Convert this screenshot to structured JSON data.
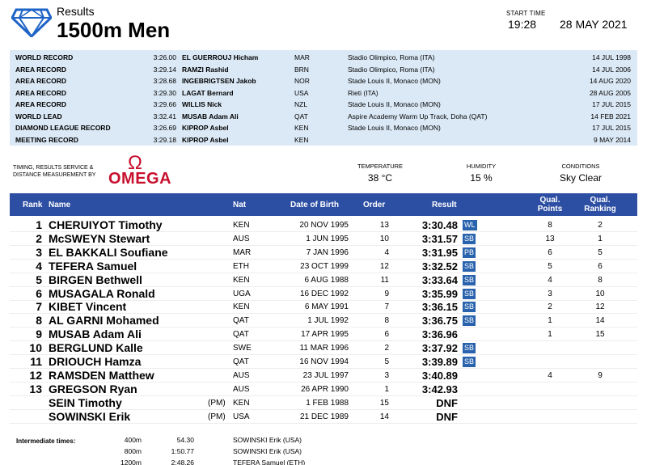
{
  "header": {
    "subtitle": "Results",
    "title": "1500m Men",
    "start_time_label": "START TIME",
    "start_time": "19:28",
    "date": "28 MAY 2021"
  },
  "records": [
    {
      "type": "WORLD RECORD",
      "mark": "3:26.00",
      "name": "EL GUERROUJ Hicham",
      "nat": "MAR",
      "venue": "Stadio Olimpico, Roma (ITA)",
      "date": "14 JUL 1998"
    },
    {
      "type": "AREA RECORD",
      "mark": "3:29.14",
      "name": "RAMZI Rashid",
      "nat": "BRN",
      "venue": "Stadio Olimpico, Roma (ITA)",
      "date": "14 JUL 2006"
    },
    {
      "type": "AREA RECORD",
      "mark": "3:28.68",
      "name": "INGEBRIGTSEN Jakob",
      "nat": "NOR",
      "venue": "Stade Louis II, Monaco (MON)",
      "date": "14 AUG 2020"
    },
    {
      "type": "AREA RECORD",
      "mark": "3:29.30",
      "name": "LAGAT Bernard",
      "nat": "USA",
      "venue": "Rieti (ITA)",
      "date": "28 AUG 2005"
    },
    {
      "type": "AREA RECORD",
      "mark": "3:29.66",
      "name": "WILLIS Nick",
      "nat": "NZL",
      "venue": "Stade Louis II, Monaco (MON)",
      "date": "17 JUL 2015"
    },
    {
      "type": "WORLD LEAD",
      "mark": "3:32.41",
      "name": "MUSAB Adam Ali",
      "nat": "QAT",
      "venue": "Aspire Academy Warm Up Track, Doha (QAT)",
      "date": "14 FEB 2021"
    },
    {
      "type": "DIAMOND LEAGUE RECORD",
      "mark": "3:26.69",
      "name": "KIPROP Asbel",
      "nat": "KEN",
      "venue": "Stade Louis II, Monaco (MON)",
      "date": "17 JUL 2015"
    },
    {
      "type": "MEETING RECORD",
      "mark": "3:29.18",
      "name": "KIPROP Asbel",
      "nat": "KEN",
      "venue": "",
      "date": "9 MAY 2014"
    }
  ],
  "timing": {
    "label_line1": "TIMING, RESULTS SERVICE &",
    "label_line2": "DISTANCE MEASUREMENT BY",
    "brand_symbol": "Ω",
    "brand": "OMEGA"
  },
  "conditions": {
    "temperature_label": "TEMPERATURE",
    "temperature": "38 °C",
    "humidity_label": "HUMIDITY",
    "humidity": "15 %",
    "conditions_label": "CONDITIONS",
    "conditions": "Sky Clear"
  },
  "table": {
    "headers": {
      "rank": "Rank",
      "name": "Name",
      "nat": "Nat",
      "dob": "Date of Birth",
      "order": "Order",
      "result": "Result",
      "qual_points_1": "Qual.",
      "qual_points_2": "Points",
      "qual_ranking_1": "Qual.",
      "qual_ranking_2": "Ranking"
    },
    "rows": [
      {
        "rank": "1",
        "name": "CHERUIYOT Timothy",
        "pm": "",
        "nat": "KEN",
        "dob": "20 NOV 1995",
        "order": "13",
        "result": "3:30.48",
        "badge": "WL",
        "qual_points": "8",
        "qual_ranking": "2"
      },
      {
        "rank": "2",
        "name": "McSWEYN Stewart",
        "pm": "",
        "nat": "AUS",
        "dob": "1 JUN 1995",
        "order": "10",
        "result": "3:31.57",
        "badge": "SB",
        "qual_points": "13",
        "qual_ranking": "1"
      },
      {
        "rank": "3",
        "name": "EL BAKKALI Soufiane",
        "pm": "",
        "nat": "MAR",
        "dob": "7 JAN 1996",
        "order": "4",
        "result": "3:31.95",
        "badge": "PB",
        "qual_points": "6",
        "qual_ranking": "5"
      },
      {
        "rank": "4",
        "name": "TEFERA Samuel",
        "pm": "",
        "nat": "ETH",
        "dob": "23 OCT 1999",
        "order": "12",
        "result": "3:32.52",
        "badge": "SB",
        "qual_points": "5",
        "qual_ranking": "6"
      },
      {
        "rank": "5",
        "name": "BIRGEN Bethwell",
        "pm": "",
        "nat": "KEN",
        "dob": "6 AUG 1988",
        "order": "11",
        "result": "3:33.64",
        "badge": "SB",
        "qual_points": "4",
        "qual_ranking": "8"
      },
      {
        "rank": "6",
        "name": "MUSAGALA Ronald",
        "pm": "",
        "nat": "UGA",
        "dob": "16 DEC 1992",
        "order": "9",
        "result": "3:35.99",
        "badge": "SB",
        "qual_points": "3",
        "qual_ranking": "10"
      },
      {
        "rank": "7",
        "name": "KIBET Vincent",
        "pm": "",
        "nat": "KEN",
        "dob": "6 MAY 1991",
        "order": "7",
        "result": "3:36.15",
        "badge": "SB",
        "qual_points": "2",
        "qual_ranking": "12"
      },
      {
        "rank": "8",
        "name": "AL GARNI Mohamed",
        "pm": "",
        "nat": "QAT",
        "dob": "1 JUL 1992",
        "order": "8",
        "result": "3:36.75",
        "badge": "SB",
        "qual_points": "1",
        "qual_ranking": "14"
      },
      {
        "rank": "9",
        "name": "MUSAB Adam Ali",
        "pm": "",
        "nat": "QAT",
        "dob": "17 APR 1995",
        "order": "6",
        "result": "3:36.96",
        "badge": "",
        "qual_points": "1",
        "qual_ranking": "15"
      },
      {
        "rank": "10",
        "name": "BERGLUND Kalle",
        "pm": "",
        "nat": "SWE",
        "dob": "11 MAR 1996",
        "order": "2",
        "result": "3:37.92",
        "badge": "SB",
        "qual_points": "",
        "qual_ranking": ""
      },
      {
        "rank": "11",
        "name": "DRIOUCH Hamza",
        "pm": "",
        "nat": "QAT",
        "dob": "16 NOV 1994",
        "order": "5",
        "result": "3:39.89",
        "badge": "SB",
        "qual_points": "",
        "qual_ranking": ""
      },
      {
        "rank": "12",
        "name": "RAMSDEN Matthew",
        "pm": "",
        "nat": "AUS",
        "dob": "23 JUL 1997",
        "order": "3",
        "result": "3:40.89",
        "badge": "",
        "qual_points": "4",
        "qual_ranking": "9"
      },
      {
        "rank": "13",
        "name": "GREGSON Ryan",
        "pm": "",
        "nat": "AUS",
        "dob": "26 APR 1990",
        "order": "1",
        "result": "3:42.93",
        "badge": "",
        "qual_points": "",
        "qual_ranking": ""
      },
      {
        "rank": "",
        "name": "SEIN Timothy",
        "pm": "(PM)",
        "nat": "KEN",
        "dob": "1 FEB 1988",
        "order": "15",
        "result": "DNF",
        "badge": "",
        "qual_points": "",
        "qual_ranking": ""
      },
      {
        "rank": "",
        "name": "SOWINSKI Erik",
        "pm": "(PM)",
        "nat": "USA",
        "dob": "21 DEC 1989",
        "order": "14",
        "result": "DNF",
        "badge": "",
        "qual_points": "",
        "qual_ranking": ""
      }
    ]
  },
  "intermediate": {
    "label": "Intermediate times:",
    "rows": [
      {
        "distance": "400m",
        "time": "54.30",
        "name": "SOWINSKI Erik (USA)"
      },
      {
        "distance": "800m",
        "time": "1:50.77",
        "name": "SOWINSKI Erik (USA)"
      },
      {
        "distance": "1200m",
        "time": "2:48.26",
        "name": "TEFERA Samuel (ETH)"
      }
    ]
  },
  "colors": {
    "header_blue": "#2d4fa3",
    "record_bg": "#dbe9f6",
    "badge_blue": "#2a63ad",
    "omega_red": "#c8102e",
    "logo_blue": "#1e63c6"
  }
}
